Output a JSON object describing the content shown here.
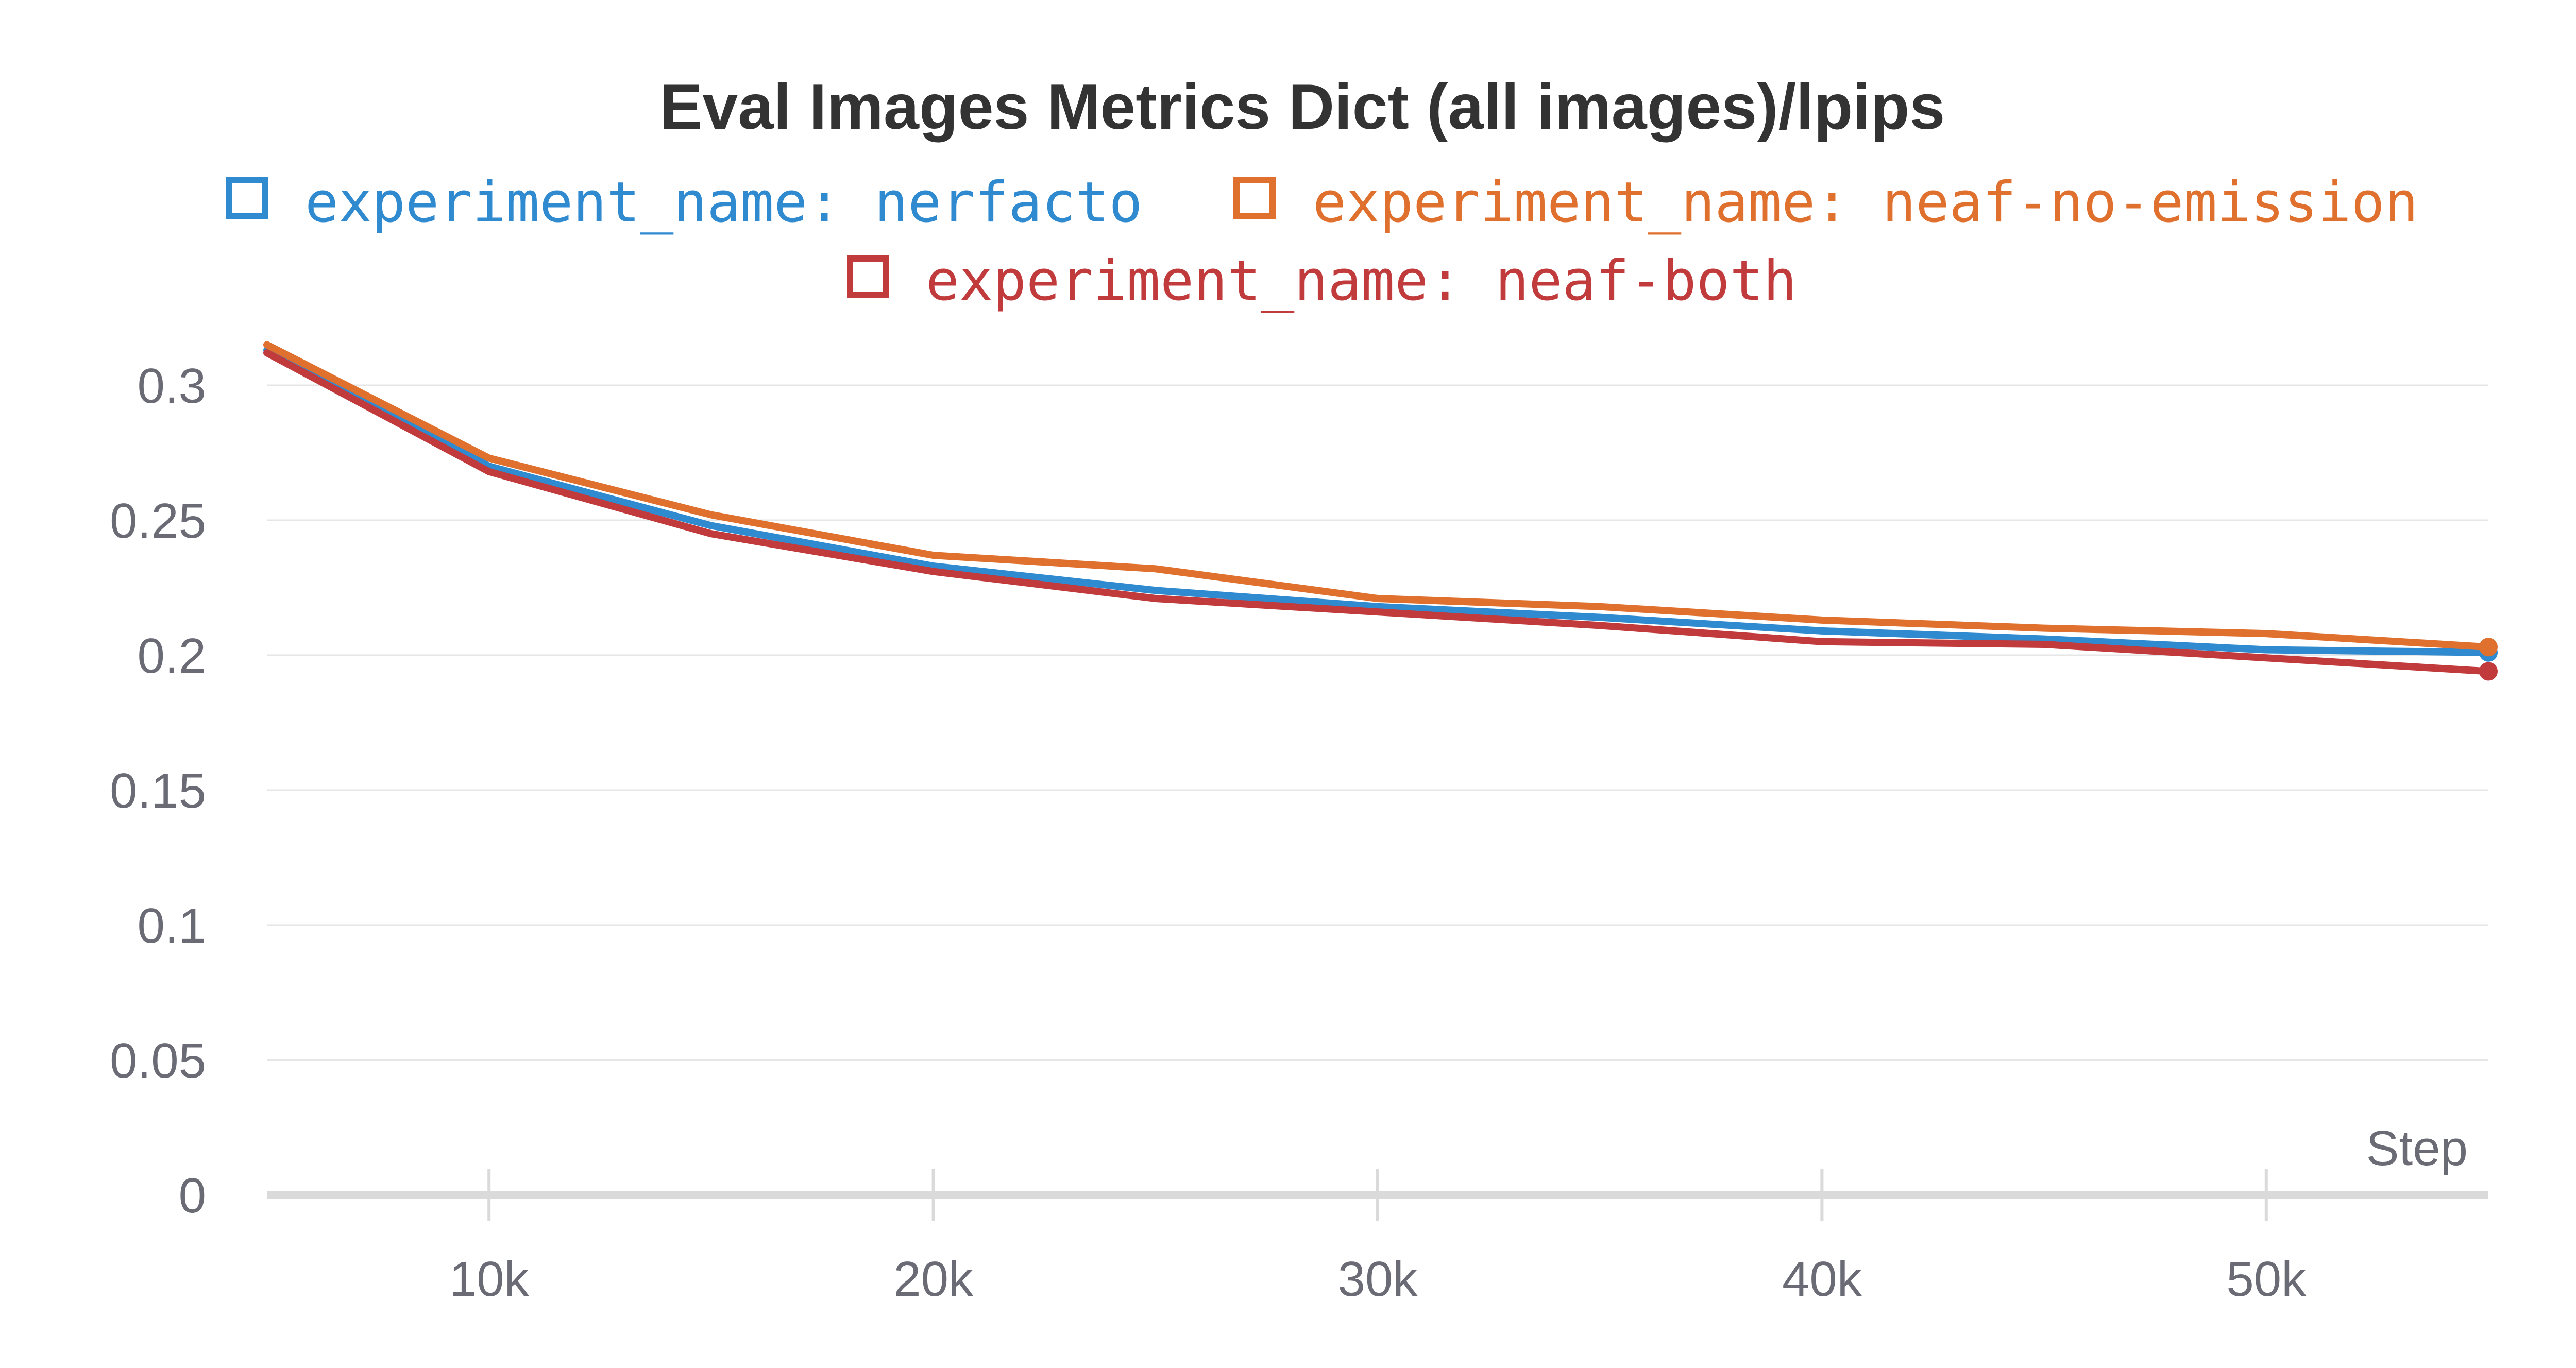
{
  "chart_data": {
    "type": "line",
    "title": "Eval Images Metrics Dict (all images)/lpips",
    "xlabel": "Step",
    "ylabel": "",
    "xlim": [
      5000,
      55000
    ],
    "ylim": [
      0,
      0.3
    ],
    "grid": true,
    "legend_position": "top",
    "x_ticks": [
      {
        "value": 10000,
        "label": "10k"
      },
      {
        "value": 20000,
        "label": "20k"
      },
      {
        "value": 30000,
        "label": "30k"
      },
      {
        "value": 40000,
        "label": "40k"
      },
      {
        "value": 50000,
        "label": "50k"
      }
    ],
    "y_ticks": [
      {
        "value": 0,
        "label": "0"
      },
      {
        "value": 0.05,
        "label": "0.05"
      },
      {
        "value": 0.1,
        "label": "0.1"
      },
      {
        "value": 0.15,
        "label": "0.15"
      },
      {
        "value": 0.2,
        "label": "0.2"
      },
      {
        "value": 0.25,
        "label": "0.25"
      },
      {
        "value": 0.3,
        "label": "0.3"
      }
    ],
    "x": [
      5000,
      10000,
      15000,
      20000,
      25000,
      30000,
      35000,
      40000,
      45000,
      50000,
      55000
    ],
    "series": [
      {
        "name": "experiment_name: nerfacto",
        "color": "#2f8ad0",
        "values": [
          0.313,
          0.27,
          0.248,
          0.233,
          0.224,
          0.218,
          0.214,
          0.209,
          0.206,
          0.202,
          0.201
        ]
      },
      {
        "name": "experiment_name: neaf-no-emission",
        "color": "#e0702e",
        "values": [
          0.315,
          0.273,
          0.252,
          0.237,
          0.232,
          0.221,
          0.218,
          0.213,
          0.21,
          0.208,
          0.203
        ]
      },
      {
        "name": "experiment_name: neaf-both",
        "color": "#c13a3c",
        "values": [
          0.312,
          0.268,
          0.245,
          0.231,
          0.221,
          0.216,
          0.211,
          0.205,
          0.204,
          0.199,
          0.194
        ]
      }
    ]
  }
}
